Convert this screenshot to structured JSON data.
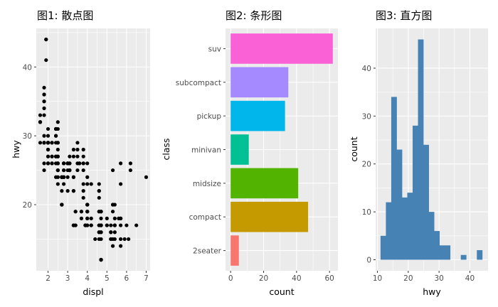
{
  "chart_data": [
    {
      "type": "scatter",
      "title": "图1: 散点图",
      "xlabel": "displ",
      "ylabel": "hwy",
      "xlim": [
        1.4,
        7.2
      ],
      "ylim": [
        10.4,
        45.6
      ],
      "xticks": [
        "2",
        "3",
        "4",
        "5",
        "6",
        "7"
      ],
      "yticks": [
        "20",
        "30",
        "40"
      ],
      "grid": true,
      "point_color": "#000000",
      "points": [
        [
          1.8,
          29
        ],
        [
          1.8,
          29
        ],
        [
          2.0,
          31
        ],
        [
          2.0,
          30
        ],
        [
          2.8,
          26
        ],
        [
          2.8,
          26
        ],
        [
          3.1,
          27
        ],
        [
          1.8,
          26
        ],
        [
          1.8,
          25
        ],
        [
          2.0,
          28
        ],
        [
          2.0,
          27
        ],
        [
          2.8,
          25
        ],
        [
          2.8,
          25
        ],
        [
          3.1,
          25
        ],
        [
          3.1,
          25
        ],
        [
          2.8,
          24
        ],
        [
          3.1,
          25
        ],
        [
          4.2,
          23
        ],
        [
          5.3,
          20
        ],
        [
          5.3,
          15
        ],
        [
          5.3,
          20
        ],
        [
          5.7,
          17
        ],
        [
          6.0,
          17
        ],
        [
          5.7,
          26
        ],
        [
          5.7,
          23
        ],
        [
          6.2,
          26
        ],
        [
          6.2,
          25
        ],
        [
          7.0,
          24
        ],
        [
          5.3,
          19
        ],
        [
          5.3,
          14
        ],
        [
          5.7,
          15
        ],
        [
          6.5,
          17
        ],
        [
          2.4,
          27
        ],
        [
          2.4,
          30
        ],
        [
          3.1,
          26
        ],
        [
          3.5,
          29
        ],
        [
          3.6,
          26
        ],
        [
          2.4,
          24
        ],
        [
          3.0,
          24
        ],
        [
          3.3,
          22
        ],
        [
          3.3,
          22
        ],
        [
          3.3,
          24
        ],
        [
          3.3,
          24
        ],
        [
          3.3,
          17
        ],
        [
          3.8,
          22
        ],
        [
          3.8,
          21
        ],
        [
          3.8,
          23
        ],
        [
          4.0,
          23
        ],
        [
          3.7,
          19
        ],
        [
          3.7,
          18
        ],
        [
          3.9,
          17
        ],
        [
          3.9,
          17
        ],
        [
          4.7,
          19
        ],
        [
          4.7,
          19
        ],
        [
          4.7,
          12
        ],
        [
          4.7,
          12
        ],
        [
          5.2,
          17
        ],
        [
          5.2,
          15
        ],
        [
          3.9,
          17
        ],
        [
          4.7,
          17
        ],
        [
          4.7,
          12
        ],
        [
          4.7,
          17
        ],
        [
          5.2,
          16
        ],
        [
          5.7,
          18
        ],
        [
          5.9,
          15
        ],
        [
          4.7,
          16
        ],
        [
          4.7,
          12
        ],
        [
          4.7,
          17
        ],
        [
          4.7,
          17
        ],
        [
          4.7,
          16
        ],
        [
          4.7,
          12
        ],
        [
          5.2,
          15
        ],
        [
          5.2,
          16
        ],
        [
          3.9,
          17
        ],
        [
          4.6,
          15
        ],
        [
          5.4,
          17
        ],
        [
          5.4,
          17
        ],
        [
          5.0,
          18
        ],
        [
          4.0,
          17
        ],
        [
          4.0,
          19
        ],
        [
          4.0,
          17
        ],
        [
          4.0,
          19
        ],
        [
          4.6,
          19
        ],
        [
          5.0,
          17
        ],
        [
          4.2,
          17
        ],
        [
          4.2,
          17
        ],
        [
          4.6,
          16
        ],
        [
          4.6,
          16
        ],
        [
          4.6,
          17
        ],
        [
          5.4,
          15
        ],
        [
          5.4,
          17
        ],
        [
          3.8,
          26
        ],
        [
          3.8,
          25
        ],
        [
          4.0,
          26
        ],
        [
          4.0,
          24
        ],
        [
          4.6,
          21
        ],
        [
          4.6,
          22
        ],
        [
          4.6,
          23
        ],
        [
          4.6,
          22
        ],
        [
          5.4,
          20
        ],
        [
          1.6,
          33
        ],
        [
          1.6,
          32
        ],
        [
          1.6,
          32
        ],
        [
          1.6,
          29
        ],
        [
          1.6,
          32
        ],
        [
          1.8,
          34
        ],
        [
          1.8,
          36
        ],
        [
          1.8,
          36
        ],
        [
          2.0,
          29
        ],
        [
          2.4,
          26
        ],
        [
          2.4,
          27
        ],
        [
          2.4,
          30
        ],
        [
          2.4,
          31
        ],
        [
          2.5,
          26
        ],
        [
          2.5,
          26
        ],
        [
          3.3,
          28
        ],
        [
          2.0,
          26
        ],
        [
          2.0,
          29
        ],
        [
          2.0,
          28
        ],
        [
          2.0,
          27
        ],
        [
          2.7,
          24
        ],
        [
          2.7,
          24
        ],
        [
          2.7,
          24
        ],
        [
          3.0,
          22
        ],
        [
          3.7,
          19
        ],
        [
          4.0,
          20
        ],
        [
          4.7,
          17
        ],
        [
          4.7,
          12
        ],
        [
          4.7,
          19
        ],
        [
          4.7,
          18
        ],
        [
          5.7,
          14
        ],
        [
          6.1,
          15
        ],
        [
          4.0,
          18
        ],
        [
          4.2,
          18
        ],
        [
          4.4,
          15
        ],
        [
          4.6,
          17
        ],
        [
          5.4,
          16
        ],
        [
          5.4,
          18
        ],
        [
          5.4,
          17
        ],
        [
          4.0,
          19
        ],
        [
          4.0,
          19
        ],
        [
          4.6,
          19
        ],
        [
          5.0,
          17
        ],
        [
          2.4,
          29
        ],
        [
          2.4,
          27
        ],
        [
          2.5,
          31
        ],
        [
          2.5,
          32
        ],
        [
          3.5,
          27
        ],
        [
          3.5,
          26
        ],
        [
          3.0,
          26
        ],
        [
          3.0,
          25
        ],
        [
          3.5,
          25
        ],
        [
          3.3,
          17
        ],
        [
          3.3,
          17
        ],
        [
          4.0,
          20
        ],
        [
          5.6,
          18
        ],
        [
          3.1,
          26
        ],
        [
          3.8,
          26
        ],
        [
          3.8,
          27
        ],
        [
          3.8,
          28
        ],
        [
          5.3,
          25
        ],
        [
          2.5,
          25
        ],
        [
          2.5,
          24
        ],
        [
          2.5,
          27
        ],
        [
          2.5,
          25
        ],
        [
          2.5,
          26
        ],
        [
          2.5,
          23
        ],
        [
          2.2,
          26
        ],
        [
          2.2,
          26
        ],
        [
          2.5,
          26
        ],
        [
          2.5,
          26
        ],
        [
          2.5,
          25
        ],
        [
          2.5,
          27
        ],
        [
          2.5,
          25
        ],
        [
          2.5,
          27
        ],
        [
          2.7,
          20
        ],
        [
          2.7,
          20
        ],
        [
          3.4,
          19
        ],
        [
          3.4,
          17
        ],
        [
          4.0,
          20
        ],
        [
          4.7,
          17
        ],
        [
          2.2,
          29
        ],
        [
          2.2,
          27
        ],
        [
          2.4,
          31
        ],
        [
          2.4,
          31
        ],
        [
          3.0,
          26
        ],
        [
          3.0,
          26
        ],
        [
          3.5,
          28
        ],
        [
          2.2,
          27
        ],
        [
          2.2,
          29
        ],
        [
          2.4,
          31
        ],
        [
          2.4,
          31
        ],
        [
          3.0,
          26
        ],
        [
          3.0,
          26
        ],
        [
          3.3,
          27
        ],
        [
          1.8,
          30
        ],
        [
          1.8,
          33
        ],
        [
          1.8,
          35
        ],
        [
          1.8,
          37
        ],
        [
          1.8,
          35
        ],
        [
          4.7,
          15
        ],
        [
          5.7,
          18
        ],
        [
          2.7,
          20
        ],
        [
          2.7,
          20
        ],
        [
          2.7,
          22
        ],
        [
          3.4,
          17
        ],
        [
          3.4,
          19
        ],
        [
          4.0,
          18
        ],
        [
          4.0,
          20
        ],
        [
          2.0,
          29
        ],
        [
          2.0,
          26
        ],
        [
          2.0,
          29
        ],
        [
          2.0,
          29
        ],
        [
          2.8,
          24
        ],
        [
          1.9,
          44
        ],
        [
          2.0,
          29
        ],
        [
          2.0,
          26
        ],
        [
          2.0,
          29
        ],
        [
          2.0,
          29
        ],
        [
          2.5,
          29
        ],
        [
          2.5,
          29
        ],
        [
          2.8,
          23
        ],
        [
          2.8,
          24
        ],
        [
          1.9,
          44
        ],
        [
          1.9,
          41
        ],
        [
          2.0,
          29
        ],
        [
          2.0,
          26
        ],
        [
          2.5,
          28
        ],
        [
          2.5,
          29
        ],
        [
          1.8,
          29
        ],
        [
          1.8,
          29
        ],
        [
          2.0,
          28
        ],
        [
          2.0,
          29
        ],
        [
          2.8,
          26
        ],
        [
          2.8,
          26
        ],
        [
          3.6,
          26
        ]
      ]
    },
    {
      "type": "bar",
      "orientation": "horizontal",
      "title": "图2: 条形图",
      "xlabel": "count",
      "ylabel": "class",
      "xlim": [
        -3.1,
        65.1
      ],
      "xticks": [
        "0",
        "20",
        "40",
        "60"
      ],
      "categories": [
        "2seater",
        "compact",
        "midsize",
        "minivan",
        "pickup",
        "subcompact",
        "suv"
      ],
      "values": [
        5,
        47,
        41,
        11,
        33,
        35,
        62
      ],
      "colors": [
        "#F8766D",
        "#C49A00",
        "#53B400",
        "#00C094",
        "#00B6EB",
        "#A58AFF",
        "#FB61D7"
      ],
      "grid": true,
      "legend": "none"
    },
    {
      "type": "bar",
      "subtype": "histogram",
      "title": "图3: 直方图",
      "xlabel": "count",
      "ylabel": "count",
      "x_axis_label": "hwy",
      "xlim": [
        9.41,
        45.9
      ],
      "ylim": [
        -2.3,
        48.3
      ],
      "xticks": [
        "10",
        "20",
        "30",
        "40"
      ],
      "yticks": [
        "0",
        "10",
        "20",
        "30",
        "40"
      ],
      "bins": 20,
      "bin_start": 11.0,
      "binwidth": 1.737,
      "values": [
        5,
        12,
        34,
        23,
        13,
        14,
        28,
        46,
        24,
        10,
        6,
        3,
        3,
        0,
        0,
        1,
        0,
        0,
        2,
        0
      ],
      "bar_color": "#4682B4",
      "grid": true
    }
  ]
}
